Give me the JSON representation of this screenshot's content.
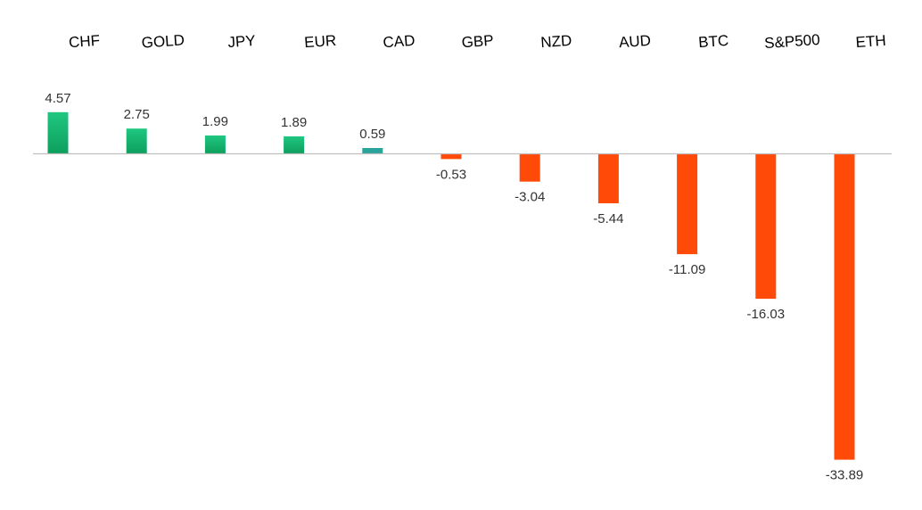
{
  "chart_data": {
    "type": "bar",
    "categories": [
      "CHF",
      "GOLD",
      "JPY",
      "EUR",
      "CAD",
      "GBP",
      "NZD",
      "AUD",
      "BTC",
      "S&P500",
      "ETH"
    ],
    "values": [
      4.57,
      2.75,
      1.99,
      1.89,
      0.59,
      -0.53,
      -3.04,
      -5.44,
      -11.09,
      -16.03,
      -33.89
    ],
    "value_labels": [
      "4.57",
      "2.75",
      "1.99",
      "1.89",
      "0.59",
      "-0.53",
      "-3.04",
      "-5.44",
      "-11.09",
      "-16.03",
      "-33.89"
    ],
    "title": "",
    "xlabel": "",
    "ylabel": "",
    "ylim": [
      -33.89,
      4.57
    ],
    "category_axis_position": "top",
    "grid": false,
    "legend": "none",
    "colors": {
      "positive_top": "#1fc780",
      "positive_bottom": "#0e9f5e",
      "positive_small": "#2aa39a",
      "negative": "#ff4a08",
      "axis": "#bfbfbf"
    }
  }
}
